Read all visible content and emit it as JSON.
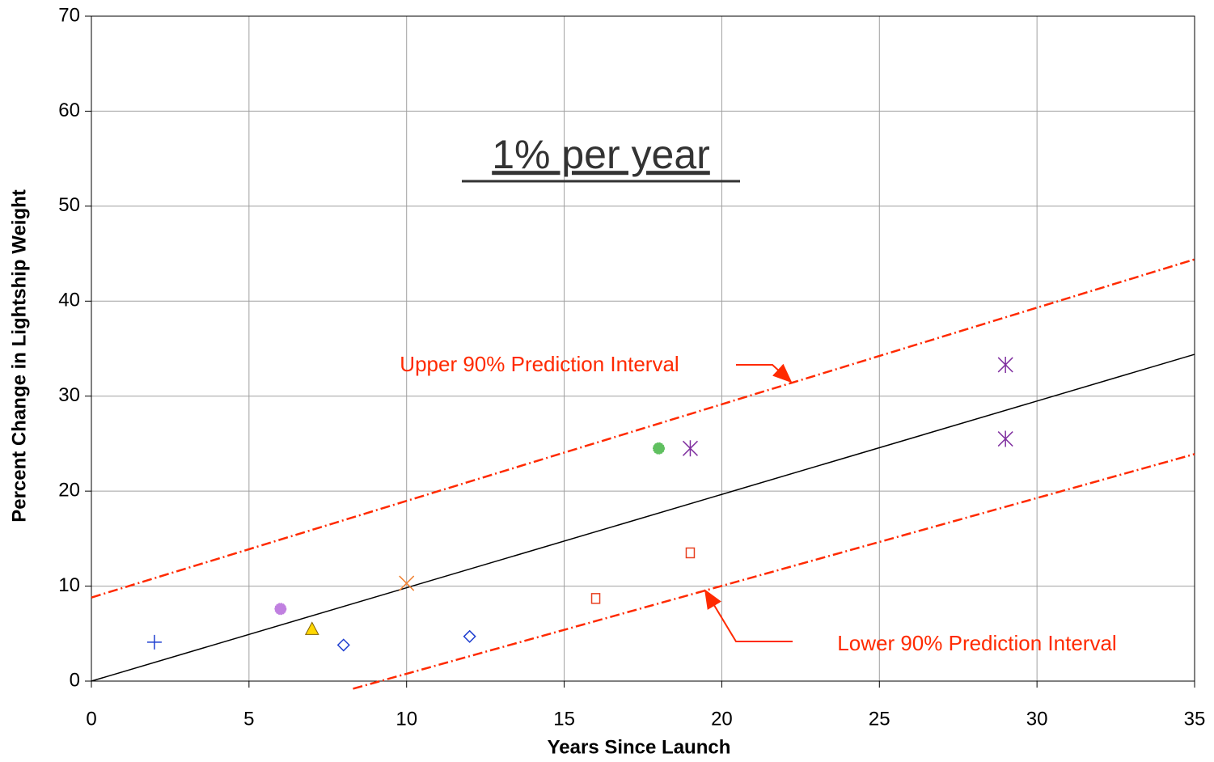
{
  "chart_data": {
    "type": "scatter",
    "title": "1% per year",
    "xlabel": "Years Since Launch",
    "ylabel": "Percent Change in Lightship Weight",
    "xlim": [
      0,
      35
    ],
    "ylim": [
      0,
      70
    ],
    "xticks": [
      0,
      5,
      10,
      15,
      20,
      25,
      30,
      35
    ],
    "yticks": [
      0,
      10,
      20,
      30,
      40,
      50,
      60,
      70
    ],
    "grid": true,
    "series": [
      {
        "marker": "plus",
        "color": "#1f3fd0",
        "x": [
          2
        ],
        "y": [
          4.1
        ]
      },
      {
        "marker": "circle",
        "color": "#c080e0",
        "x": [
          6
        ],
        "y": [
          7.6
        ]
      },
      {
        "marker": "triangle",
        "color": "#ffd700",
        "x": [
          7
        ],
        "y": [
          5.5
        ]
      },
      {
        "marker": "diamond",
        "color": "#1f3fd0",
        "x": [
          8,
          12
        ],
        "y": [
          3.8,
          4.7
        ]
      },
      {
        "marker": "cross",
        "color": "#f08030",
        "x": [
          10
        ],
        "y": [
          10.3
        ]
      },
      {
        "marker": "square",
        "color": "#e84020",
        "x": [
          16,
          19
        ],
        "y": [
          8.7,
          13.5
        ]
      },
      {
        "marker": "circle",
        "color": "#60c060",
        "x": [
          18
        ],
        "y": [
          24.5
        ]
      },
      {
        "marker": "asterisk",
        "color": "#8030a0",
        "x": [
          19,
          29,
          29
        ],
        "y": [
          24.5,
          33.3,
          25.5
        ]
      }
    ],
    "lines": [
      {
        "color": "#000000",
        "dash": false,
        "x": [
          0,
          35
        ],
        "y": [
          0,
          34.4
        ]
      },
      {
        "color": "#ff2a00",
        "dash": true,
        "x": [
          0,
          35
        ],
        "y": [
          8.8,
          44.4
        ]
      },
      {
        "color": "#ff2a00",
        "dash": true,
        "x": [
          8.3,
          35
        ],
        "y": [
          -0.8,
          23.9
        ]
      }
    ],
    "annotations": [
      "Upper 90% Prediction Interval",
      "Lower 90% Prediction Interval"
    ]
  }
}
